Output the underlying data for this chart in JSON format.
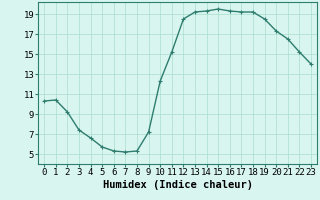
{
  "x": [
    0,
    1,
    2,
    3,
    4,
    5,
    6,
    7,
    8,
    9,
    10,
    11,
    12,
    13,
    14,
    15,
    16,
    17,
    18,
    19,
    20,
    21,
    22,
    23
  ],
  "y": [
    10.3,
    10.4,
    9.2,
    7.4,
    6.6,
    5.7,
    5.3,
    5.2,
    5.3,
    7.2,
    12.3,
    15.2,
    18.5,
    19.2,
    19.3,
    19.5,
    19.3,
    19.2,
    19.2,
    18.5,
    17.3,
    16.5,
    15.2,
    14.0
  ],
  "line_color": "#2e7d6e",
  "marker": "+",
  "marker_size": 3,
  "bg_color": "#d8f5f0",
  "grid_color": "#aaddcc",
  "xlabel": "Humidex (Indice chaleur)",
  "xlim": [
    -0.5,
    23.5
  ],
  "ylim": [
    4,
    20.2
  ],
  "yticks": [
    5,
    7,
    9,
    11,
    13,
    15,
    17,
    19
  ],
  "xticks": [
    0,
    1,
    2,
    3,
    4,
    5,
    6,
    7,
    8,
    9,
    10,
    11,
    12,
    13,
    14,
    15,
    16,
    17,
    18,
    19,
    20,
    21,
    22,
    23
  ],
  "xlabel_fontsize": 7.5,
  "tick_fontsize": 6.5,
  "line_width": 1.0
}
